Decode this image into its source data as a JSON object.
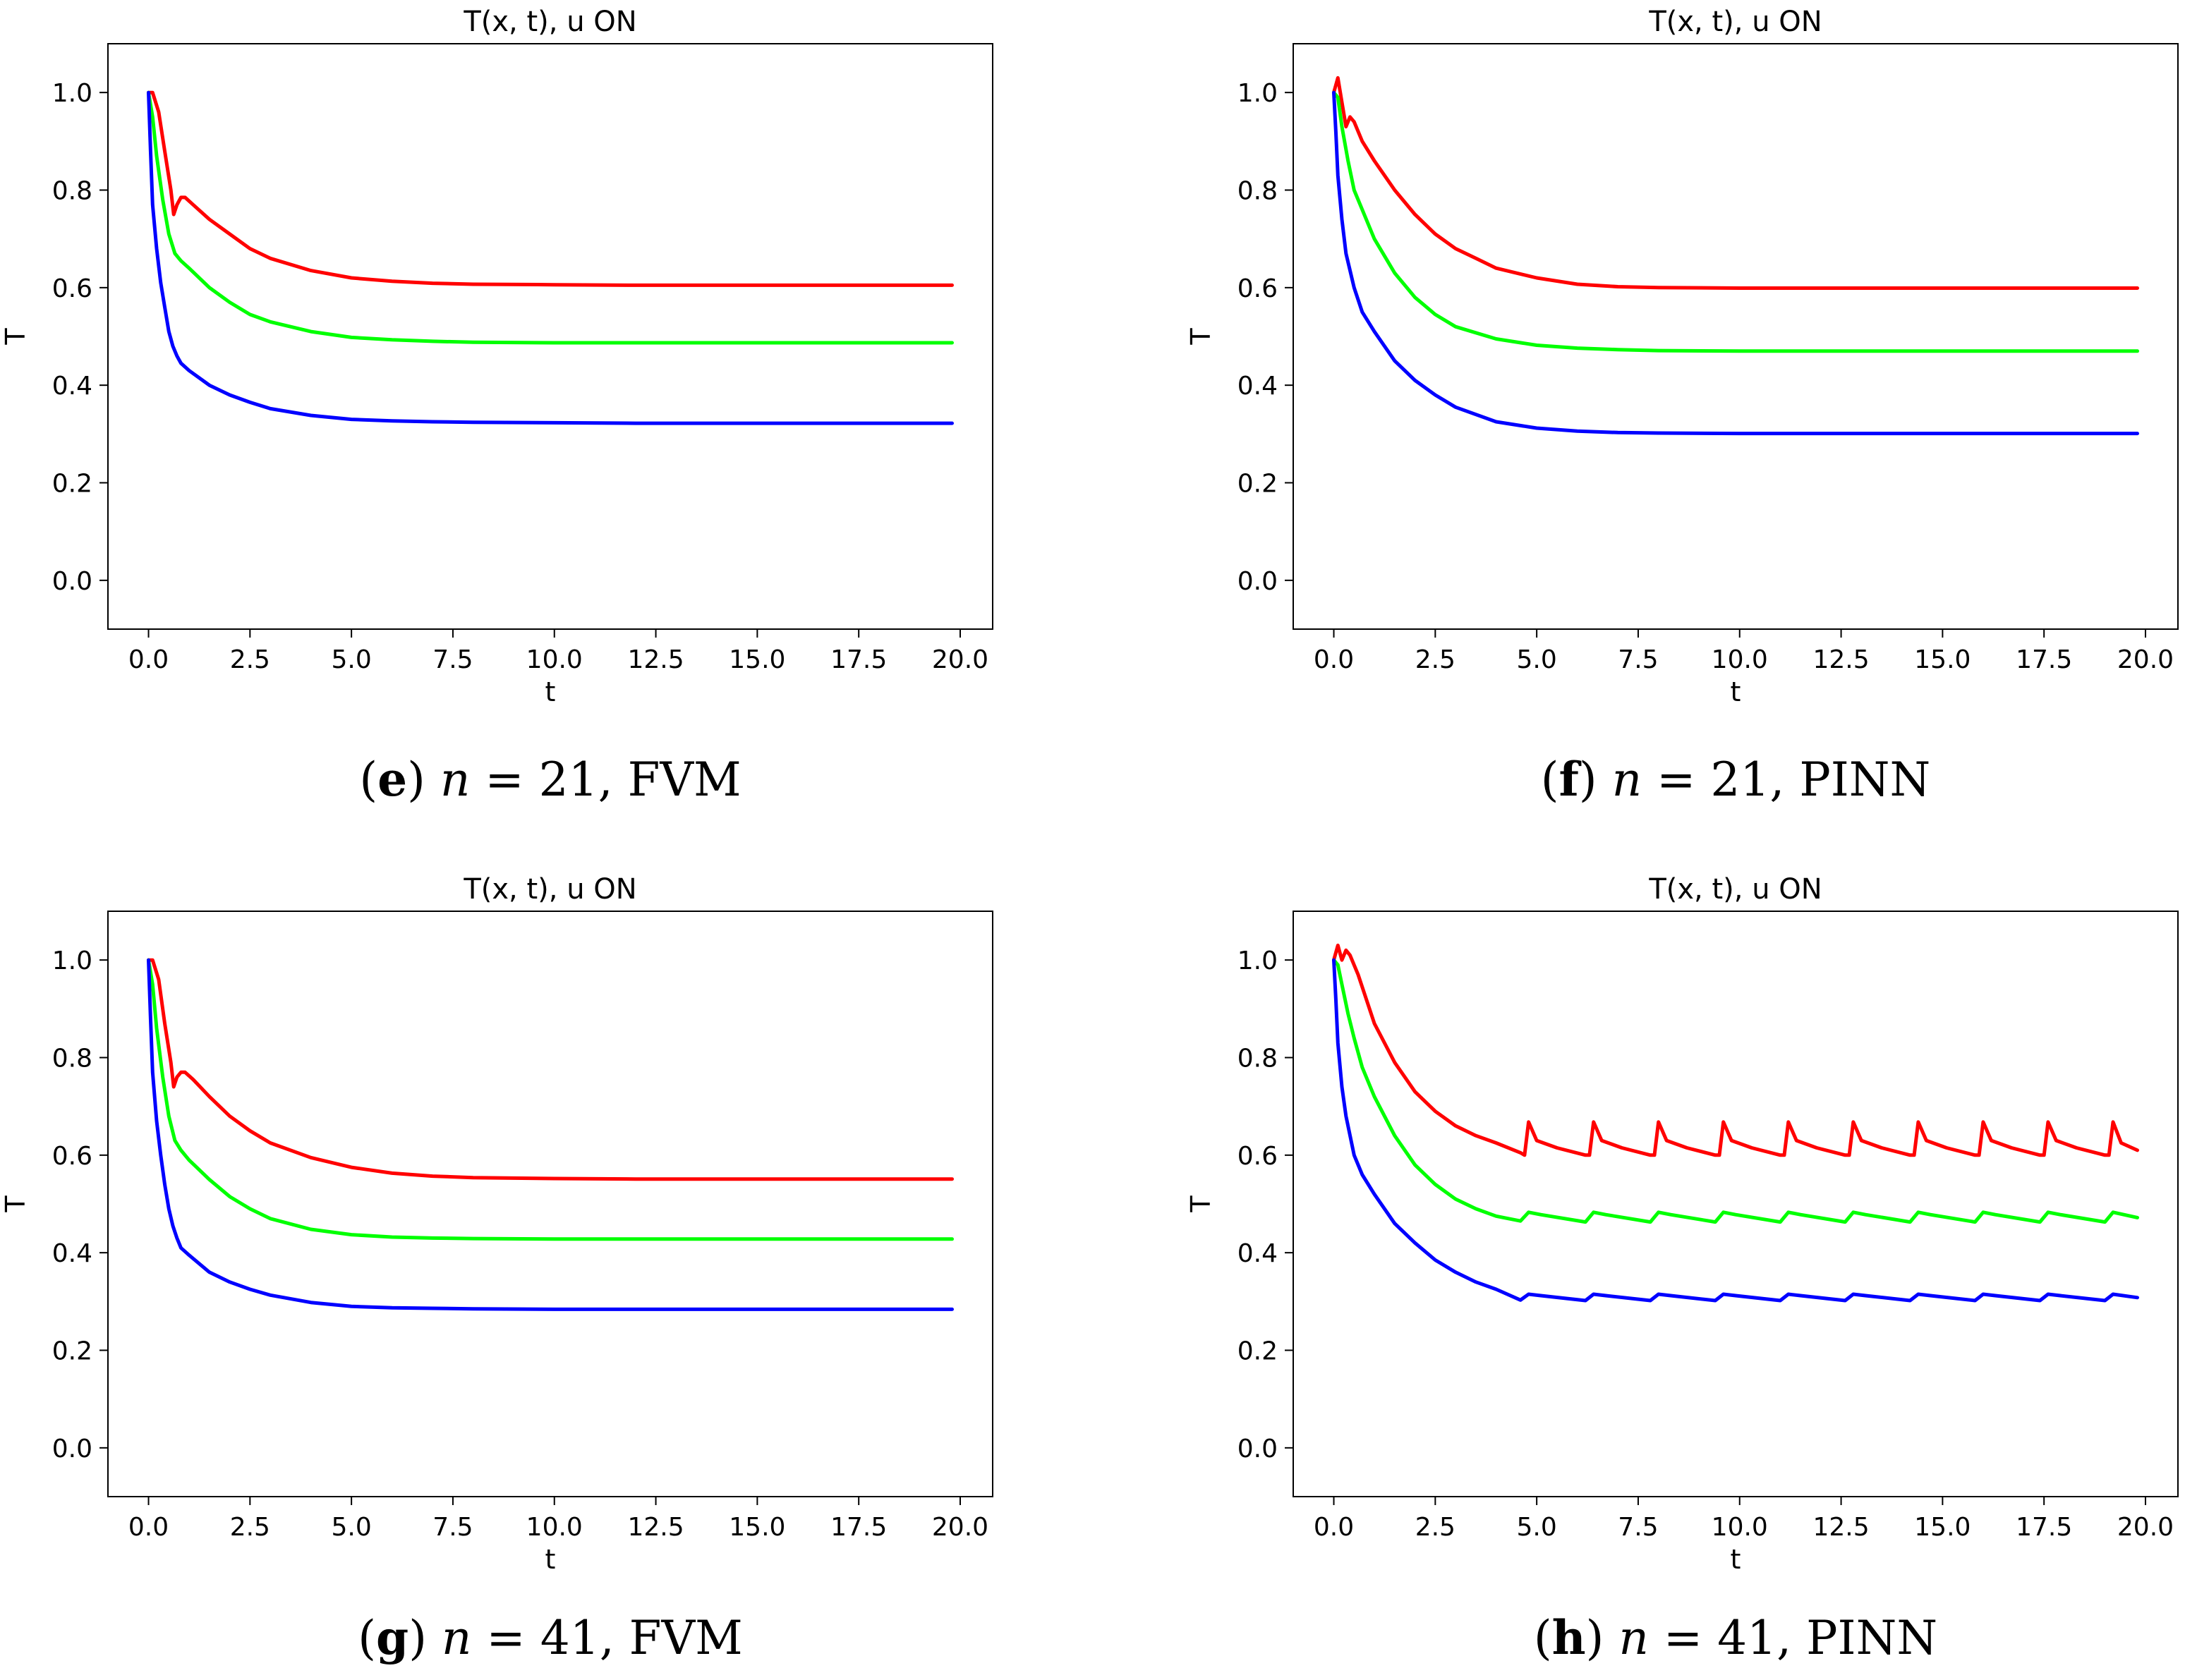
{
  "chart_data": [
    {
      "type": "line",
      "title": "T(x, t), u ON",
      "xlabel": "t",
      "ylabel": "T",
      "xlim": [
        -1.0,
        20.8
      ],
      "ylim": [
        -0.1,
        1.1
      ],
      "xticks": [
        "0.0",
        "2.5",
        "5.0",
        "7.5",
        "10.0",
        "12.5",
        "15.0",
        "17.5",
        "20.0"
      ],
      "yticks": [
        "0.0",
        "0.2",
        "0.4",
        "0.6",
        "0.8",
        "1.0"
      ],
      "caption": {
        "letter": "e",
        "n": "21",
        "method": "FVM"
      },
      "series": [
        {
          "color": "#ff0000",
          "x": [
            0,
            0.1,
            0.25,
            0.4,
            0.55,
            0.62,
            0.7,
            0.8,
            0.9,
            1.1,
            1.5,
            2,
            2.5,
            3,
            4,
            5,
            6,
            7,
            8,
            10,
            12,
            15,
            18,
            19.8
          ],
          "y": [
            1.0,
            1.0,
            0.96,
            0.88,
            0.8,
            0.75,
            0.77,
            0.785,
            0.785,
            0.77,
            0.74,
            0.71,
            0.68,
            0.66,
            0.635,
            0.62,
            0.613,
            0.609,
            0.607,
            0.606,
            0.605,
            0.605,
            0.605,
            0.605
          ]
        },
        {
          "color": "#00ff00",
          "x": [
            0,
            0.1,
            0.2,
            0.35,
            0.5,
            0.65,
            0.8,
            1.0,
            1.5,
            2,
            2.5,
            3,
            4,
            5,
            6,
            7,
            8,
            10,
            12,
            15,
            18,
            19.8
          ],
          "y": [
            1.0,
            0.95,
            0.87,
            0.78,
            0.71,
            0.67,
            0.655,
            0.64,
            0.6,
            0.57,
            0.545,
            0.53,
            0.51,
            0.498,
            0.493,
            0.49,
            0.488,
            0.487,
            0.487,
            0.487,
            0.487,
            0.487
          ]
        },
        {
          "color": "#0000ff",
          "x": [
            0,
            0.05,
            0.1,
            0.2,
            0.3,
            0.4,
            0.5,
            0.6,
            0.7,
            0.8,
            1.0,
            1.5,
            2,
            2.5,
            3,
            4,
            5,
            6,
            7,
            8,
            10,
            12,
            15,
            18,
            19.8
          ],
          "y": [
            1.0,
            0.88,
            0.77,
            0.68,
            0.61,
            0.56,
            0.51,
            0.48,
            0.46,
            0.445,
            0.43,
            0.4,
            0.38,
            0.365,
            0.352,
            0.338,
            0.33,
            0.327,
            0.325,
            0.324,
            0.323,
            0.322,
            0.322,
            0.322,
            0.322
          ]
        }
      ]
    },
    {
      "type": "line",
      "title": "T(x, t), u ON",
      "xlabel": "t",
      "ylabel": "T",
      "xlim": [
        -1.0,
        20.8
      ],
      "ylim": [
        -0.1,
        1.1
      ],
      "xticks": [
        "0.0",
        "2.5",
        "5.0",
        "7.5",
        "10.0",
        "12.5",
        "15.0",
        "17.5",
        "20.0"
      ],
      "yticks": [
        "0.0",
        "0.2",
        "0.4",
        "0.6",
        "0.8",
        "1.0"
      ],
      "caption": {
        "letter": "f",
        "n": "21",
        "method": "PINN"
      },
      "series": [
        {
          "color": "#ff0000",
          "x": [
            0,
            0.1,
            0.2,
            0.3,
            0.4,
            0.5,
            0.7,
            1.0,
            1.5,
            2,
            2.5,
            3,
            3.5,
            4,
            5,
            6,
            7,
            8,
            10,
            12,
            15,
            18,
            19.8
          ],
          "y": [
            1.0,
            1.03,
            0.98,
            0.93,
            0.95,
            0.94,
            0.9,
            0.86,
            0.8,
            0.75,
            0.71,
            0.68,
            0.66,
            0.64,
            0.62,
            0.607,
            0.602,
            0.6,
            0.599,
            0.599,
            0.599,
            0.599,
            0.599
          ]
        },
        {
          "color": "#00ff00",
          "x": [
            0,
            0.1,
            0.2,
            0.35,
            0.5,
            0.7,
            1.0,
            1.5,
            2,
            2.5,
            3,
            4,
            5,
            6,
            7,
            8,
            10,
            12,
            15,
            18,
            19.8
          ],
          "y": [
            1.0,
            0.99,
            0.93,
            0.86,
            0.8,
            0.76,
            0.7,
            0.63,
            0.58,
            0.545,
            0.52,
            0.495,
            0.482,
            0.476,
            0.473,
            0.471,
            0.47,
            0.47,
            0.47,
            0.47,
            0.47
          ]
        },
        {
          "color": "#0000ff",
          "x": [
            0,
            0.05,
            0.1,
            0.2,
            0.3,
            0.5,
            0.7,
            1.0,
            1.5,
            2,
            2.5,
            3,
            4,
            5,
            6,
            7,
            8,
            10,
            12,
            15,
            18,
            19.8
          ],
          "y": [
            1.0,
            0.92,
            0.83,
            0.74,
            0.67,
            0.6,
            0.55,
            0.51,
            0.45,
            0.41,
            0.38,
            0.355,
            0.325,
            0.312,
            0.306,
            0.303,
            0.302,
            0.301,
            0.301,
            0.301,
            0.301,
            0.301
          ]
        }
      ]
    },
    {
      "type": "line",
      "title": "T(x, t), u ON",
      "xlabel": "t",
      "ylabel": "T",
      "xlim": [
        -1.0,
        20.8
      ],
      "ylim": [
        -0.1,
        1.1
      ],
      "xticks": [
        "0.0",
        "2.5",
        "5.0",
        "7.5",
        "10.0",
        "12.5",
        "15.0",
        "17.5",
        "20.0"
      ],
      "yticks": [
        "0.0",
        "0.2",
        "0.4",
        "0.6",
        "0.8",
        "1.0"
      ],
      "caption": {
        "letter": "g",
        "n": "41",
        "method": "FVM"
      },
      "series": [
        {
          "color": "#ff0000",
          "x": [
            0,
            0.1,
            0.25,
            0.4,
            0.55,
            0.62,
            0.7,
            0.8,
            0.9,
            1.1,
            1.5,
            2,
            2.5,
            3,
            4,
            5,
            6,
            7,
            8,
            10,
            12,
            15,
            18,
            19.8
          ],
          "y": [
            1.0,
            1.0,
            0.96,
            0.87,
            0.79,
            0.74,
            0.76,
            0.77,
            0.77,
            0.755,
            0.72,
            0.68,
            0.65,
            0.625,
            0.595,
            0.575,
            0.563,
            0.557,
            0.554,
            0.552,
            0.551,
            0.551,
            0.551,
            0.551
          ]
        },
        {
          "color": "#00ff00",
          "x": [
            0,
            0.1,
            0.2,
            0.35,
            0.5,
            0.65,
            0.8,
            1.0,
            1.5,
            2,
            2.5,
            3,
            4,
            5,
            6,
            7,
            8,
            10,
            12,
            15,
            18,
            19.8
          ],
          "y": [
            1.0,
            0.95,
            0.86,
            0.76,
            0.68,
            0.63,
            0.61,
            0.59,
            0.55,
            0.515,
            0.49,
            0.47,
            0.448,
            0.437,
            0.432,
            0.43,
            0.429,
            0.428,
            0.428,
            0.428,
            0.428,
            0.428
          ]
        },
        {
          "color": "#0000ff",
          "x": [
            0,
            0.05,
            0.1,
            0.2,
            0.3,
            0.4,
            0.5,
            0.6,
            0.7,
            0.8,
            1.0,
            1.5,
            2,
            2.5,
            3,
            4,
            5,
            6,
            7,
            8,
            10,
            12,
            15,
            18,
            19.8
          ],
          "y": [
            1.0,
            0.88,
            0.77,
            0.67,
            0.6,
            0.54,
            0.49,
            0.455,
            0.43,
            0.41,
            0.395,
            0.36,
            0.34,
            0.325,
            0.313,
            0.298,
            0.29,
            0.287,
            0.286,
            0.285,
            0.284,
            0.284,
            0.284,
            0.284,
            0.284
          ]
        }
      ]
    },
    {
      "type": "line",
      "title": "T(x, t), u ON",
      "xlabel": "t",
      "ylabel": "T",
      "xlim": [
        -1.0,
        20.8
      ],
      "ylim": [
        -0.1,
        1.1
      ],
      "xticks": [
        "0.0",
        "2.5",
        "5.0",
        "7.5",
        "10.0",
        "12.5",
        "15.0",
        "17.5",
        "20.0"
      ],
      "yticks": [
        "0.0",
        "0.2",
        "0.4",
        "0.6",
        "0.8",
        "1.0"
      ],
      "caption": {
        "letter": "h",
        "n": "41",
        "method": "PINN"
      },
      "series": [
        {
          "color": "#ff0000",
          "x": [
            0,
            0.1,
            0.2,
            0.3,
            0.4,
            0.6,
            0.8,
            1.0,
            1.5,
            2,
            2.5,
            3,
            3.5,
            4,
            4.6,
            4.7,
            4.8,
            5.0,
            5.5,
            6.2,
            6.3,
            6.4,
            6.6,
            7.1,
            7.8,
            7.9,
            8.0,
            8.2,
            8.7,
            9.4,
            9.5,
            9.6,
            9.8,
            10.3,
            11.0,
            11.1,
            11.2,
            11.4,
            11.9,
            12.6,
            12.7,
            12.8,
            13.0,
            13.5,
            14.2,
            14.3,
            14.4,
            14.6,
            15.1,
            15.8,
            15.9,
            16.0,
            16.2,
            16.7,
            17.4,
            17.5,
            17.6,
            17.8,
            18.3,
            19.0,
            19.1,
            19.2,
            19.4,
            19.8
          ],
          "y": [
            1.0,
            1.03,
            1.0,
            1.02,
            1.01,
            0.97,
            0.92,
            0.87,
            0.79,
            0.73,
            0.69,
            0.66,
            0.64,
            0.625,
            0.605,
            0.6,
            0.668,
            0.63,
            0.615,
            0.6,
            0.6,
            0.668,
            0.63,
            0.615,
            0.6,
            0.6,
            0.668,
            0.63,
            0.615,
            0.6,
            0.6,
            0.668,
            0.63,
            0.615,
            0.6,
            0.6,
            0.668,
            0.63,
            0.615,
            0.6,
            0.6,
            0.668,
            0.63,
            0.615,
            0.6,
            0.6,
            0.668,
            0.63,
            0.615,
            0.6,
            0.6,
            0.668,
            0.63,
            0.615,
            0.6,
            0.6,
            0.668,
            0.63,
            0.615,
            0.6,
            0.6,
            0.668,
            0.625,
            0.61
          ]
        },
        {
          "color": "#00ff00",
          "x": [
            0,
            0.1,
            0.2,
            0.35,
            0.5,
            0.7,
            1.0,
            1.5,
            2,
            2.5,
            3,
            3.5,
            4,
            4.6,
            4.8,
            5.1,
            6.2,
            6.4,
            6.7,
            7.8,
            8.0,
            8.3,
            9.4,
            9.6,
            9.9,
            11.0,
            11.2,
            11.5,
            12.6,
            12.8,
            13.1,
            14.2,
            14.4,
            14.7,
            15.8,
            16.0,
            16.3,
            17.4,
            17.6,
            17.9,
            19.0,
            19.2,
            19.8
          ],
          "y": [
            1.0,
            0.99,
            0.95,
            0.89,
            0.84,
            0.78,
            0.72,
            0.64,
            0.58,
            0.54,
            0.51,
            0.49,
            0.475,
            0.465,
            0.483,
            0.478,
            0.463,
            0.483,
            0.478,
            0.463,
            0.483,
            0.478,
            0.463,
            0.483,
            0.478,
            0.463,
            0.483,
            0.478,
            0.463,
            0.483,
            0.478,
            0.463,
            0.483,
            0.478,
            0.463,
            0.483,
            0.478,
            0.463,
            0.483,
            0.478,
            0.463,
            0.483,
            0.472
          ]
        },
        {
          "color": "#0000ff",
          "x": [
            0,
            0.05,
            0.1,
            0.2,
            0.3,
            0.5,
            0.7,
            1.0,
            1.5,
            2,
            2.5,
            3,
            3.5,
            4,
            4.6,
            4.8,
            5.1,
            6.2,
            6.4,
            6.7,
            7.8,
            8.0,
            8.3,
            9.4,
            9.6,
            9.9,
            11.0,
            11.2,
            11.5,
            12.6,
            12.8,
            13.1,
            14.2,
            14.4,
            14.7,
            15.8,
            16.0,
            16.3,
            17.4,
            17.6,
            17.9,
            19.0,
            19.2,
            19.8
          ],
          "y": [
            1.0,
            0.92,
            0.83,
            0.74,
            0.68,
            0.6,
            0.56,
            0.52,
            0.46,
            0.42,
            0.385,
            0.36,
            0.34,
            0.325,
            0.303,
            0.315,
            0.312,
            0.302,
            0.315,
            0.312,
            0.302,
            0.315,
            0.312,
            0.302,
            0.315,
            0.312,
            0.302,
            0.315,
            0.312,
            0.302,
            0.315,
            0.312,
            0.302,
            0.315,
            0.312,
            0.302,
            0.315,
            0.312,
            0.302,
            0.315,
            0.312,
            0.302,
            0.315,
            0.308
          ]
        }
      ]
    }
  ]
}
